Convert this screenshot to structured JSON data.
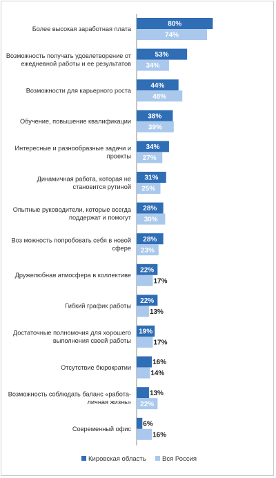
{
  "colors": {
    "kirov": "#2f6db5",
    "russia": "#a9c8ec",
    "axis": "#8e8e8e"
  },
  "chart_data": {
    "type": "bar",
    "orientation": "horizontal",
    "value_unit": "%",
    "categories": [
      [
        "Более высокая заработная плата"
      ],
      [
        "Возможность получать удовлетворение от",
        "ежедневной работы и ее результатов"
      ],
      [
        "Возможности для карьерного роста"
      ],
      [
        "Обучение, повышение квалификации"
      ],
      [
        "Интересные и разнообразные задачи и",
        "проекты"
      ],
      [
        "Динамичная работа, которая не",
        "становится рутиной"
      ],
      [
        "Опытные руководители, которые всегда",
        "поддержат и помогут"
      ],
      [
        "Воз можность попробовать себя в новой",
        "сфере"
      ],
      [
        "Дружелюбная атмосфера в коллективе"
      ],
      [
        "Гибкий график работы"
      ],
      [
        "Достаточные полномочия для хорошего",
        "выполнения своей работы"
      ],
      [
        "Отсутствие бюрократии"
      ],
      [
        "Возможность соблюдать баланс «работа-",
        "личная жизнь»"
      ],
      [
        "Современный офис"
      ]
    ],
    "series": [
      {
        "name": "Кировская область",
        "values": [
          80,
          53,
          44,
          38,
          34,
          31,
          28,
          28,
          22,
          22,
          19,
          16,
          13,
          6
        ]
      },
      {
        "name": "Вся Россия",
        "values": [
          74,
          34,
          48,
          39,
          27,
          25,
          30,
          23,
          17,
          13,
          17,
          14,
          22,
          16
        ]
      }
    ],
    "legend_position": "bottom",
    "grid": false
  }
}
